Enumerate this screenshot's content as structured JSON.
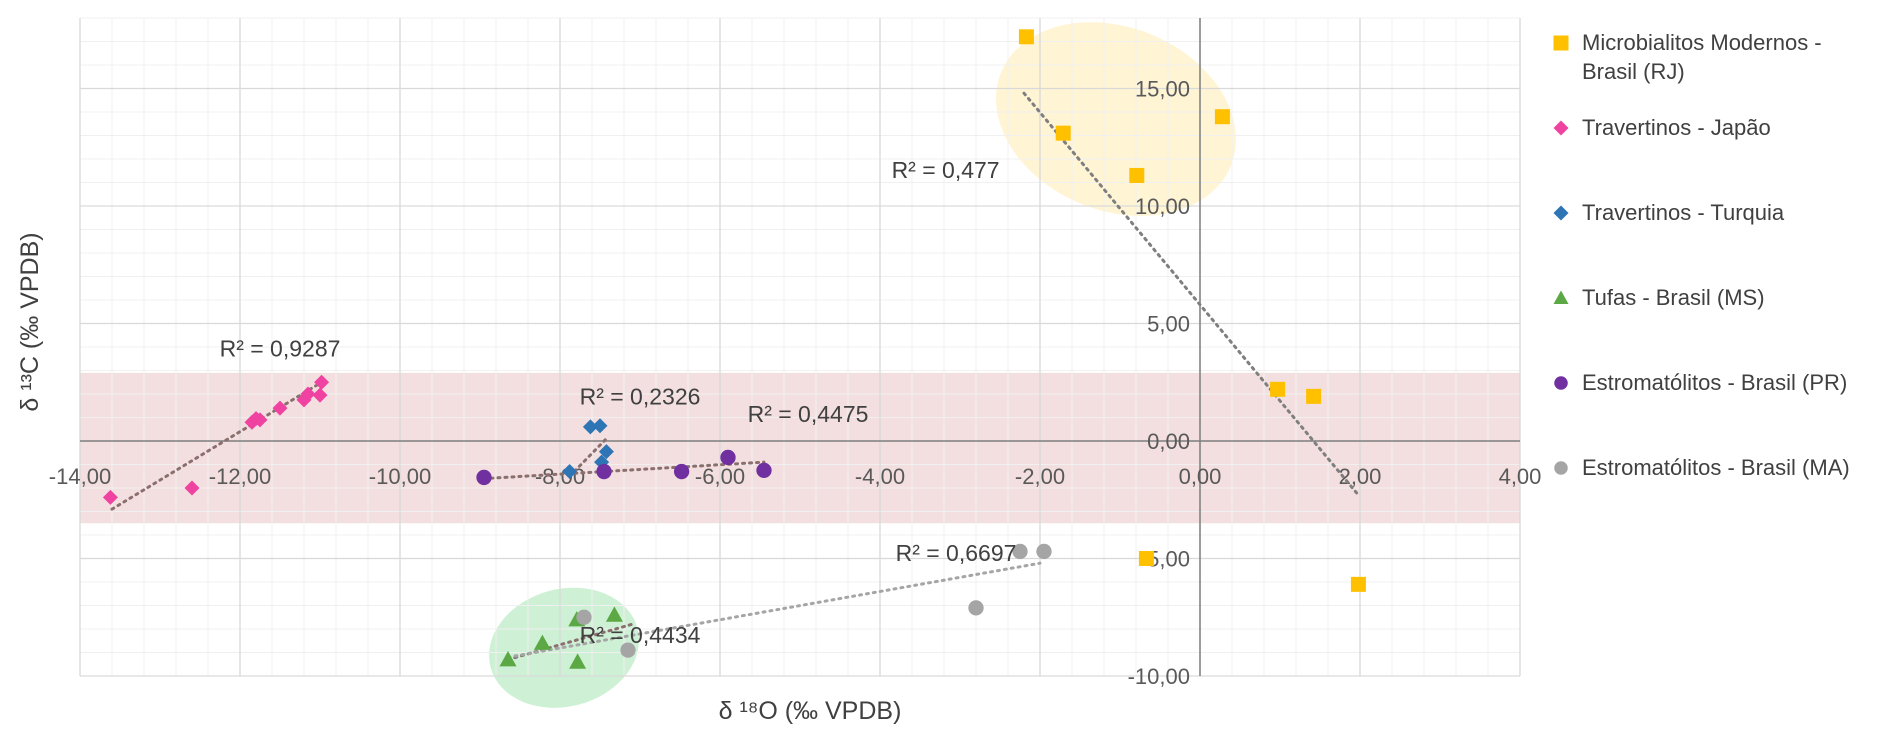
{
  "chart_data": {
    "type": "scatter",
    "xlabel": "δ ¹⁸O (‰ VPDB)",
    "ylabel": "δ ¹³C (‰ VPDB)",
    "xlim": [
      -14,
      4
    ],
    "ylim": [
      -10,
      18
    ],
    "x_ticks": [
      -14,
      -12,
      -10,
      -8,
      -6,
      -4,
      -2,
      0,
      2,
      4
    ],
    "y_ticks": [
      -10,
      -5,
      0,
      5,
      10,
      15
    ],
    "x_tick_labels": [
      "-14,00",
      "-12,00",
      "-10,00",
      "-8,00",
      "-6,00",
      "-4,00",
      "-2,00",
      "0,00",
      "2,00",
      "4,00"
    ],
    "y_tick_labels": [
      "-10,00",
      "-5,00",
      "0,00",
      "5,00",
      "10,00",
      "15,00"
    ],
    "grid": true,
    "legend_position": "right",
    "series": [
      {
        "name": "Microbialitos Modernos - Brasil (RJ)",
        "marker": "square",
        "color": "#FFC000",
        "points": [
          [
            -2.17,
            17.2
          ],
          [
            -1.71,
            13.1
          ],
          [
            -0.79,
            11.3
          ],
          [
            0.28,
            13.8
          ],
          [
            0.97,
            2.2
          ],
          [
            1.42,
            1.9
          ],
          [
            -0.67,
            -5.0
          ],
          [
            1.98,
            -6.1
          ]
        ],
        "r2_label": "R² = 0,477",
        "trend": [
          [
            -2.2,
            14.8
          ],
          [
            1.98,
            -2.3
          ]
        ]
      },
      {
        "name": "Travertinos - Japão",
        "marker": "diamond",
        "color": "#F042A0",
        "points": [
          [
            -13.62,
            -2.4
          ],
          [
            -12.6,
            -2.0
          ],
          [
            -11.85,
            0.8
          ],
          [
            -11.8,
            0.95
          ],
          [
            -11.75,
            0.9
          ],
          [
            -11.5,
            1.4
          ],
          [
            -11.2,
            1.75
          ],
          [
            -11.15,
            2.0
          ],
          [
            -11.0,
            1.95
          ],
          [
            -10.98,
            2.5
          ]
        ],
        "r2_label": "R² = 0,9287",
        "trend": [
          [
            -13.6,
            -2.9
          ],
          [
            -10.98,
            2.5
          ]
        ]
      },
      {
        "name": "Travertinos - Turquia",
        "marker": "diamond",
        "color": "#2E75B6",
        "points": [
          [
            -7.88,
            -1.3
          ],
          [
            -7.62,
            0.6
          ],
          [
            -7.5,
            0.65
          ],
          [
            -7.48,
            -0.9
          ],
          [
            -7.42,
            -0.45
          ]
        ],
        "r2_label": "R² = 0,2326",
        "trend": [
          [
            -7.88,
            -1.5
          ],
          [
            -7.42,
            0.1
          ]
        ]
      },
      {
        "name": "Tufas - Brasil (MS)",
        "marker": "triangle",
        "color": "#5BA845",
        "points": [
          [
            -8.65,
            -9.3
          ],
          [
            -8.22,
            -8.6
          ],
          [
            -7.79,
            -7.6
          ],
          [
            -7.78,
            -9.4
          ],
          [
            -7.32,
            -7.4
          ]
        ],
        "r2_label": "R² = 0,4434",
        "trend": [
          [
            -8.65,
            -9.3
          ],
          [
            -7.1,
            -7.8
          ]
        ]
      },
      {
        "name": "Estromatólitos - Brasil (PR)",
        "marker": "circle",
        "color": "#7030A0",
        "points": [
          [
            -8.95,
            -1.55
          ],
          [
            -7.45,
            -1.3
          ],
          [
            -6.48,
            -1.3
          ],
          [
            -5.9,
            -0.7
          ],
          [
            -5.45,
            -1.25
          ]
        ],
        "r2_label": "R² = 0,4475",
        "trend": [
          [
            -8.95,
            -1.6
          ],
          [
            -5.45,
            -0.9
          ]
        ]
      },
      {
        "name": "Estromatólitos - Brasil (MA)",
        "marker": "circle",
        "color": "#A5A5A5",
        "points": [
          [
            -7.7,
            -7.5
          ],
          [
            -7.15,
            -8.9
          ],
          [
            -2.8,
            -7.1
          ],
          [
            -2.25,
            -4.7
          ],
          [
            -1.95,
            -4.7
          ]
        ],
        "r2_label": "R² = 0,6697",
        "trend": [
          [
            -8.65,
            -9.2
          ],
          [
            -2.0,
            -5.2
          ]
        ]
      }
    ],
    "shaded_regions": [
      {
        "color": "#F2DCDB",
        "y_range": [
          -3.5,
          2.9
        ]
      },
      {
        "color": "#FFF2CC",
        "ellipse_center": [
          -1.05,
          13.7
        ],
        "ellipse_radii": [
          1.55,
          3.9
        ]
      },
      {
        "color": "#C6EFCE",
        "ellipse_center": [
          -7.95,
          -8.8
        ],
        "ellipse_radii": [
          0.95,
          2.5
        ]
      }
    ]
  }
}
